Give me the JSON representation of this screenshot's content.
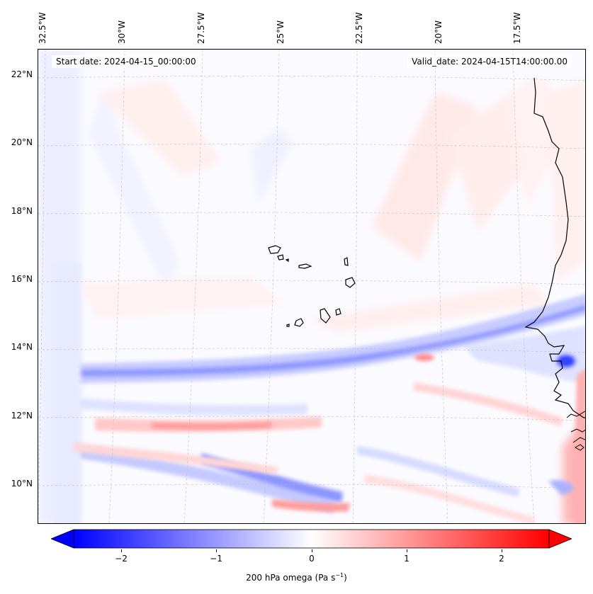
{
  "header": {
    "start_date": "Start date: 2024-04-15_00:00:00",
    "valid_date": "Valid_date: 2024-04-15T14:00:00.00"
  },
  "axes": {
    "lon_labels": [
      "32.5°W",
      "30°W",
      "27.5°W",
      "25°W",
      "22.5°W",
      "20°W",
      "17.5°W"
    ],
    "lat_labels": [
      "22°N",
      "20°N",
      "18°N",
      "16°N",
      "14°N",
      "12°N",
      "10°N"
    ]
  },
  "colorbar": {
    "ticks": [
      "−2",
      "−1",
      "0",
      "1",
      "2"
    ],
    "tick_values": [
      -2,
      -1,
      0,
      1,
      2
    ],
    "range": [
      -2.5,
      2.5
    ],
    "title_main": "200 hPa omega (Pa s",
    "title_sup": "−1",
    "title_end": ")",
    "colors": {
      "neg": "#0000ff",
      "zero": "#ffffff",
      "pos": "#ff0000"
    }
  },
  "map": {
    "projection": "lambert-conformal",
    "gridlines": true,
    "coastline_color": "#000000"
  }
}
